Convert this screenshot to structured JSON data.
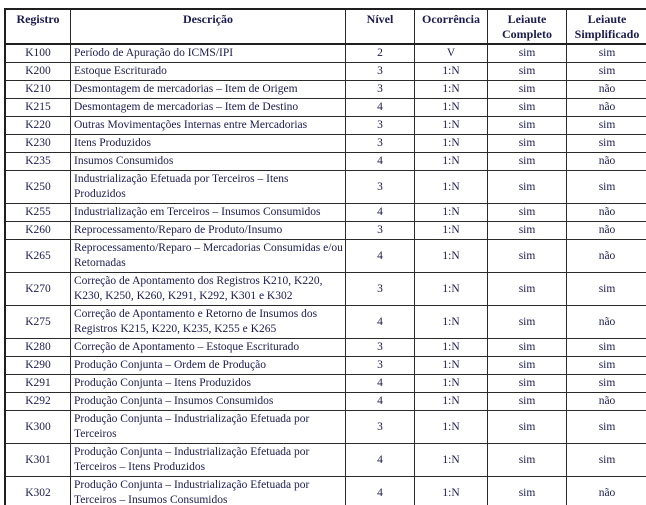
{
  "table": {
    "headers": {
      "registro": "Registro",
      "descricao": "Descrição",
      "nivel": "Nível",
      "ocorrencia": "Ocorrência",
      "leiaute_completo": "Leiaute Completo",
      "leiaute_simplificado": "Leiaute Simplificado"
    },
    "rows": [
      {
        "registro": "K100",
        "descricao": "Período de Apuração do ICMS/IPI",
        "nivel": "2",
        "ocorrencia": "V",
        "leiaute_completo": "sim",
        "leiaute_simplificado": "sim"
      },
      {
        "registro": "K200",
        "descricao": "Estoque Escriturado",
        "nivel": "3",
        "ocorrencia": "1:N",
        "leiaute_completo": "sim",
        "leiaute_simplificado": "sim"
      },
      {
        "registro": "K210",
        "descricao": "Desmontagem de mercadorias – Item de Origem",
        "nivel": "3",
        "ocorrencia": "1:N",
        "leiaute_completo": "sim",
        "leiaute_simplificado": "não"
      },
      {
        "registro": "K215",
        "descricao": "Desmontagem de mercadorias – Item de Destino",
        "nivel": "4",
        "ocorrencia": "1:N",
        "leiaute_completo": "sim",
        "leiaute_simplificado": "não"
      },
      {
        "registro": "K220",
        "descricao": "Outras Movimentações Internas entre Mercadorias",
        "nivel": "3",
        "ocorrencia": "1:N",
        "leiaute_completo": "sim",
        "leiaute_simplificado": "sim"
      },
      {
        "registro": "K230",
        "descricao": "Itens Produzidos",
        "nivel": "3",
        "ocorrencia": "1:N",
        "leiaute_completo": "sim",
        "leiaute_simplificado": "sim"
      },
      {
        "registro": "K235",
        "descricao": "Insumos Consumidos",
        "nivel": "4",
        "ocorrencia": "1:N",
        "leiaute_completo": "sim",
        "leiaute_simplificado": "não"
      },
      {
        "registro": "K250",
        "descricao": "Industrialização Efetuada por Terceiros – Itens Produzidos",
        "nivel": "3",
        "ocorrencia": "1:N",
        "leiaute_completo": "sim",
        "leiaute_simplificado": "sim"
      },
      {
        "registro": "K255",
        "descricao": "Industrialização em Terceiros – Insumos Consumidos",
        "nivel": "4",
        "ocorrencia": "1:N",
        "leiaute_completo": "sim",
        "leiaute_simplificado": "não"
      },
      {
        "registro": "K260",
        "descricao": "Reprocessamento/Reparo de Produto/Insumo",
        "nivel": "3",
        "ocorrencia": "1:N",
        "leiaute_completo": "sim",
        "leiaute_simplificado": "não"
      },
      {
        "registro": "K265",
        "descricao": "Reprocessamento/Reparo – Mercadorias Consumidas e/ou Retornadas",
        "nivel": "4",
        "ocorrencia": "1:N",
        "leiaute_completo": "sim",
        "leiaute_simplificado": "não"
      },
      {
        "registro": "K270",
        "descricao": "Correção de Apontamento dos Registros K210, K220, K230, K250, K260, K291, K292, K301 e K302",
        "nivel": "3",
        "ocorrencia": "1:N",
        "leiaute_completo": "sim",
        "leiaute_simplificado": "sim"
      },
      {
        "registro": "K275",
        "descricao": "Correção de Apontamento e Retorno de Insumos dos Registros K215, K220, K235, K255 e K265",
        "nivel": "4",
        "ocorrencia": "1:N",
        "leiaute_completo": "sim",
        "leiaute_simplificado": "não"
      },
      {
        "registro": "K280",
        "descricao": "Correção de Apontamento – Estoque Escriturado",
        "nivel": "3",
        "ocorrencia": "1:N",
        "leiaute_completo": "sim",
        "leiaute_simplificado": "sim"
      },
      {
        "registro": "K290",
        "descricao": "Produção Conjunta – Ordem de Produção",
        "nivel": "3",
        "ocorrencia": "1:N",
        "leiaute_completo": "sim",
        "leiaute_simplificado": "sim"
      },
      {
        "registro": "K291",
        "descricao": "Produção Conjunta – Itens Produzidos",
        "nivel": "4",
        "ocorrencia": "1:N",
        "leiaute_completo": "sim",
        "leiaute_simplificado": "sim"
      },
      {
        "registro": "K292",
        "descricao": "Produção Conjunta – Insumos Consumidos",
        "nivel": "4",
        "ocorrencia": "1:N",
        "leiaute_completo": "sim",
        "leiaute_simplificado": "não"
      },
      {
        "registro": "K300",
        "descricao": "Produção Conjunta – Industrialização Efetuada por Terceiros",
        "nivel": "3",
        "ocorrencia": "1:N",
        "leiaute_completo": "sim",
        "leiaute_simplificado": "sim"
      },
      {
        "registro": "K301",
        "descricao": "Produção Conjunta – Industrialização Efetuada por Terceiros – Itens Produzidos",
        "nivel": "4",
        "ocorrencia": "1:N",
        "leiaute_completo": "sim",
        "leiaute_simplificado": "sim"
      },
      {
        "registro": "K302",
        "descricao": "Produção Conjunta – Industrialização Efetuada por Terceiros – Insumos Consumidos",
        "nivel": "4",
        "ocorrencia": "1:N",
        "leiaute_completo": "sim",
        "leiaute_simplificado": "não"
      }
    ]
  }
}
